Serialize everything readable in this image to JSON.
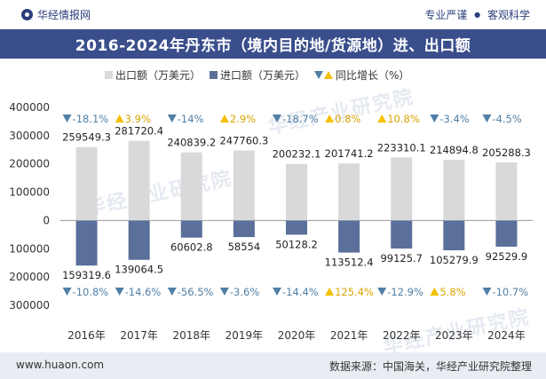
{
  "header": {
    "brand": "华经情报网",
    "tag1": "专业严谨",
    "tag_sep": "●",
    "tag2": "客观科学"
  },
  "watermark": "华经产业研究院",
  "footer": {
    "url": "www.huaon.com",
    "source": "数据来源：中国海关，华经产业研究院整理"
  },
  "colors": {
    "export_bar": "#d9d9d9",
    "import_bar": "#5a6f99",
    "down_marker": "#4f7fa6",
    "up_marker": "#f5c000",
    "title_bg": "#3a4e8c"
  },
  "chart_data": {
    "type": "bar",
    "title": "2016-2024年丹东市（境内目的地/货源地）进、出口额",
    "categories": [
      "2016年",
      "2017年",
      "2018年",
      "2019年",
      "2020年",
      "2021年",
      "2022年",
      "2023年",
      "2024年"
    ],
    "series": [
      {
        "name": "出口额（万美元）",
        "values": [
          259549.3,
          281720.4,
          240839.2,
          247760.3,
          200232.1,
          201741.2,
          223310.1,
          214894.8,
          205288.3
        ],
        "labels": [
          "259549.3",
          "281720.4",
          "240839.2",
          "247760.3",
          "200232.1",
          "201741.2",
          "223310.1",
          "214894.8",
          "205288.3"
        ]
      },
      {
        "name": "进口额（万美元）",
        "values": [
          -159319.6,
          -139064.5,
          -60602.8,
          -58554,
          -50128.2,
          -113512.4,
          -99125.7,
          -105279.9,
          -92529.9
        ],
        "labels": [
          "159319.6",
          "139064.5",
          "60602.8",
          "58554",
          "50128.2",
          "113512.4",
          "99125.7",
          "105279.9",
          "92529.9"
        ]
      }
    ],
    "growth": {
      "name": "同比增长（%）",
      "export": [
        -18.1,
        3.9,
        -14,
        2.9,
        -18.7,
        0.8,
        10.8,
        -3.4,
        -4.5
      ],
      "export_labels": [
        "-18.1%",
        "3.9%",
        "-14%",
        "2.9%",
        "-18.7%",
        "0.8%",
        "10.8%",
        "-3.4%",
        "-4.5%"
      ],
      "import": [
        -10.8,
        -14.6,
        -56.5,
        -3.6,
        -14.4,
        125.4,
        -12.9,
        5.8,
        -10.7
      ],
      "import_labels": [
        "-10.8%",
        "-14.6%",
        "-56.5%",
        "-3.6%",
        "-14.4%",
        "125.4%",
        "-12.9%",
        "5.8%",
        "-10.7%"
      ]
    },
    "yticks": [
      400000,
      300000,
      200000,
      100000,
      0,
      -100000,
      -200000,
      -300000
    ],
    "ytick_labels": [
      "400000",
      "300000",
      "200000",
      "100000",
      "0",
      "100000",
      "200000",
      "300000"
    ],
    "ylim": [
      -300000,
      400000
    ],
    "legend_position": "top"
  }
}
